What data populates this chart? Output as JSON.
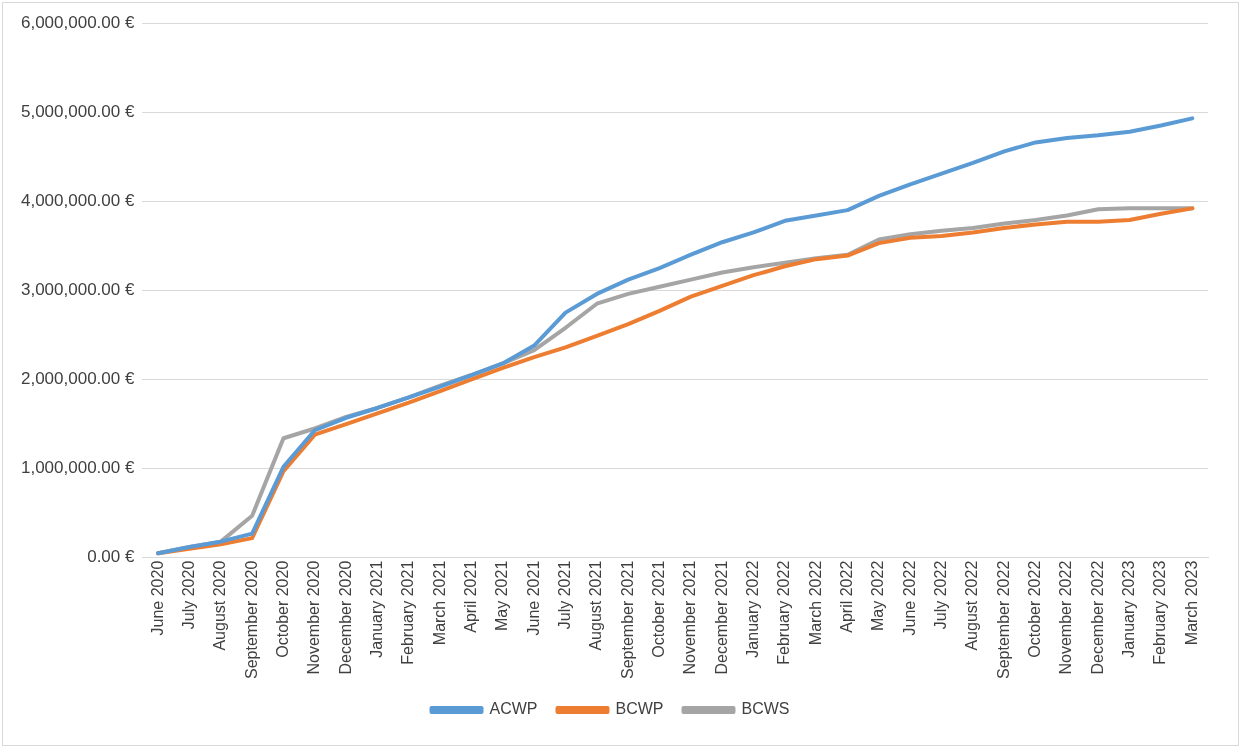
{
  "chart_data": {
    "type": "line",
    "categories": [
      "June 2020",
      "July 2020",
      "August 2020",
      "September 2020",
      "October 2020",
      "November 2020",
      "December 2020",
      "January 2021",
      "February 2021",
      "March 2021",
      "April 2021",
      "May 2021",
      "June 2021",
      "July 2021",
      "August 2021",
      "September 2021",
      "October 2021",
      "November 2021",
      "December 2021",
      "January 2022",
      "February 2022",
      "March 2022",
      "April 2022",
      "May 2022",
      "June 2022",
      "July 2022",
      "August 2022",
      "September 2022",
      "October 2022",
      "November 2022",
      "December 2022",
      "January 2023",
      "February 2023",
      "March 2023"
    ],
    "series": [
      {
        "name": "ACWP",
        "color": "#5b9bd5",
        "values": [
          50000,
          120000,
          180000,
          270000,
          1020000,
          1430000,
          1570000,
          1680000,
          1800000,
          1920000,
          2050000,
          2180000,
          2380000,
          2750000,
          2960000,
          3120000,
          3250000,
          3400000,
          3540000,
          3650000,
          3780000,
          3840000,
          3900000,
          4060000,
          4190000,
          4310000,
          4430000,
          4560000,
          4660000,
          4710000,
          4740000,
          4780000,
          4850000,
          4930000
        ]
      },
      {
        "name": "BCWP",
        "color": "#ed7d31",
        "values": [
          50000,
          100000,
          150000,
          220000,
          970000,
          1380000,
          1500000,
          1620000,
          1740000,
          1870000,
          2000000,
          2130000,
          2250000,
          2360000,
          2490000,
          2620000,
          2770000,
          2930000,
          3050000,
          3170000,
          3270000,
          3350000,
          3390000,
          3530000,
          3590000,
          3610000,
          3650000,
          3700000,
          3740000,
          3770000,
          3770000,
          3790000,
          3860000,
          3920000
        ]
      },
      {
        "name": "BCWS",
        "color": "#a5a5a5",
        "values": [
          50000,
          120000,
          180000,
          470000,
          1340000,
          1450000,
          1580000,
          1680000,
          1800000,
          1930000,
          2050000,
          2180000,
          2330000,
          2580000,
          2850000,
          2960000,
          3040000,
          3120000,
          3200000,
          3260000,
          3310000,
          3360000,
          3400000,
          3570000,
          3630000,
          3670000,
          3700000,
          3750000,
          3790000,
          3840000,
          3910000,
          3920000,
          3920000,
          3920000
        ]
      }
    ],
    "ylim": [
      0,
      6000000
    ],
    "yticks": [
      {
        "value": 0,
        "label": "0.00 €"
      },
      {
        "value": 1000000,
        "label": "1,000,000.00 €"
      },
      {
        "value": 2000000,
        "label": "2,000,000.00 €"
      },
      {
        "value": 3000000,
        "label": "3,000,000.00 €"
      },
      {
        "value": 4000000,
        "label": "4,000,000.00 €"
      },
      {
        "value": 5000000,
        "label": "5,000,000.00 €"
      },
      {
        "value": 6000000,
        "label": "6,000,000.00 €"
      }
    ],
    "grid": "y",
    "legend": "bottom",
    "marker": "none",
    "line_style": "solid"
  }
}
